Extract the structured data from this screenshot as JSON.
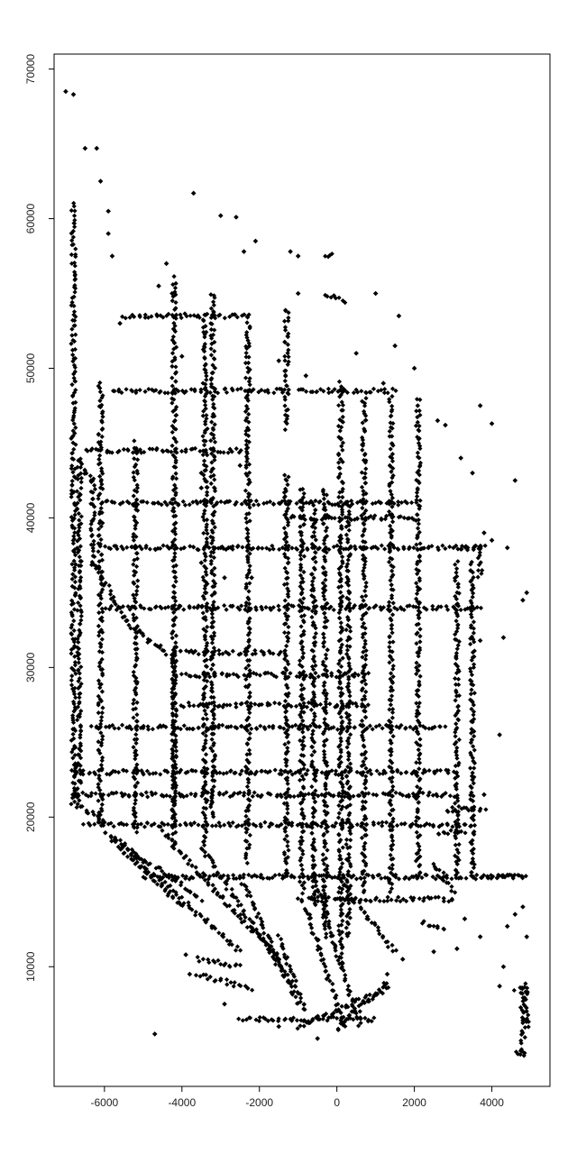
{
  "chart_data": {
    "type": "scatter",
    "title": "",
    "xlabel": "",
    "ylabel": "",
    "xlim": [
      -7300,
      5500
    ],
    "ylim": [
      2000,
      71000
    ],
    "grid": false,
    "legend": "none",
    "marker": "filled-diamond",
    "marker_color": "#000000",
    "x_ticks": [
      -6000,
      -4000,
      -2000,
      0,
      2000,
      4000
    ],
    "x_tick_labels": [
      "-6000",
      "-4000",
      "-2000",
      "0",
      "2000",
      "4000"
    ],
    "y_ticks": [
      10000,
      20000,
      30000,
      40000,
      50000,
      60000,
      70000
    ],
    "y_tick_labels": [
      "10000",
      "20000",
      "30000",
      "40000",
      "50000",
      "60000",
      "70000"
    ],
    "dense_traces": [
      {
        "x": [
          -6800,
          -6800
        ],
        "y": [
          21000,
          61000
        ]
      },
      {
        "x": [
          -6650,
          -6650
        ],
        "y": [
          21000,
          44000
        ]
      },
      {
        "x": [
          -6600,
          -6300
        ],
        "y": [
          43500,
          42500
        ]
      },
      {
        "x": [
          -6300,
          -6300
        ],
        "y": [
          42500,
          37000
        ]
      },
      {
        "x": [
          -6300,
          -5400
        ],
        "y": [
          37000,
          33000
        ]
      },
      {
        "x": [
          -5400,
          -4200
        ],
        "y": [
          33000,
          30500
        ]
      },
      {
        "x": [
          -6100,
          -6100
        ],
        "y": [
          19500,
          49000
        ]
      },
      {
        "x": [
          -5200,
          -5200
        ],
        "y": [
          19000,
          45000
        ]
      },
      {
        "x": [
          -4200,
          -4200
        ],
        "y": [
          18000,
          56000
        ]
      },
      {
        "x": [
          -3200,
          -3200
        ],
        "y": [
          20000,
          55000
        ]
      },
      {
        "x": [
          -3400,
          -3400
        ],
        "y": [
          18000,
          53500
        ]
      },
      {
        "x": [
          -2300,
          -2300
        ],
        "y": [
          17000,
          53500
        ]
      },
      {
        "x": [
          -1300,
          -1300
        ],
        "y": [
          16000,
          43000
        ]
      },
      {
        "x": [
          -1300,
          -1300
        ],
        "y": [
          46000,
          54000
        ]
      },
      {
        "x": [
          -900,
          -900
        ],
        "y": [
          15000,
          42000
        ]
      },
      {
        "x": [
          -600,
          -600
        ],
        "y": [
          14000,
          41000
        ]
      },
      {
        "x": [
          -300,
          -300
        ],
        "y": [
          12000,
          42000
        ]
      },
      {
        "x": [
          100,
          100
        ],
        "y": [
          10000,
          49000
        ]
      },
      {
        "x": [
          300,
          300
        ],
        "y": [
          12000,
          41000
        ]
      },
      {
        "x": [
          700,
          700
        ],
        "y": [
          15000,
          48000
        ]
      },
      {
        "x": [
          1400,
          1400
        ],
        "y": [
          15000,
          48000
        ]
      },
      {
        "x": [
          2100,
          2100
        ],
        "y": [
          16000,
          48000
        ]
      },
      {
        "x": [
          3100,
          3100
        ],
        "y": [
          16000,
          37000
        ]
      },
      {
        "x": [
          3500,
          3500
        ],
        "y": [
          16000,
          37000
        ]
      },
      {
        "x": [
          -6000,
          3700
        ],
        "y": [
          38000,
          38000
        ]
      },
      {
        "x": [
          -6000,
          3700
        ],
        "y": [
          34000,
          34000
        ]
      },
      {
        "x": [
          -6300,
          2800
        ],
        "y": [
          26000,
          26000
        ]
      },
      {
        "x": [
          -6800,
          3000
        ],
        "y": [
          21500,
          21500
        ]
      },
      {
        "x": [
          -6500,
          3500
        ],
        "y": [
          19500,
          19500
        ]
      },
      {
        "x": [
          -6800,
          3000
        ],
        "y": [
          23000,
          23000
        ]
      },
      {
        "x": [
          -5000,
          4900
        ],
        "y": [
          16000,
          16000
        ]
      },
      {
        "x": [
          -1000,
          3000
        ],
        "y": [
          14500,
          14500
        ]
      },
      {
        "x": [
          -1300,
          2000
        ],
        "y": [
          41000,
          41000
        ]
      },
      {
        "x": [
          -1300,
          2000
        ],
        "y": [
          40000,
          40000
        ]
      },
      {
        "x": [
          -6000,
          -1300
        ],
        "y": [
          41000,
          41000
        ]
      },
      {
        "x": [
          -6500,
          -2300
        ],
        "y": [
          44500,
          44500
        ]
      },
      {
        "x": [
          -5800,
          -1300
        ],
        "y": [
          48500,
          48500
        ]
      },
      {
        "x": [
          -1000,
          1500
        ],
        "y": [
          48500,
          48500
        ]
      },
      {
        "x": [
          -5500,
          -2300
        ],
        "y": [
          53500,
          53500
        ]
      },
      {
        "x": [
          -4200,
          -1400
        ],
        "y": [
          31000,
          31000
        ]
      },
      {
        "x": [
          -4200,
          -4200
        ],
        "y": [
          19500,
          31000
        ]
      },
      {
        "x": [
          -4000,
          800
        ],
        "y": [
          27500,
          27500
        ]
      },
      {
        "x": [
          -4000,
          800
        ],
        "y": [
          29500,
          29500
        ]
      },
      {
        "x": [
          -6800,
          -6000
        ],
        "y": [
          21000,
          19700
        ]
      },
      {
        "x": [
          -6000,
          -3500
        ],
        "y": [
          19000,
          14500
        ]
      },
      {
        "x": [
          -5800,
          -4000
        ],
        "y": [
          18500,
          14000
        ]
      },
      {
        "x": [
          -5500,
          -2500
        ],
        "y": [
          18000,
          11000
        ]
      },
      {
        "x": [
          -4500,
          -1500
        ],
        "y": [
          19000,
          10500
        ]
      },
      {
        "x": [
          -3500,
          -1200
        ],
        "y": [
          18000,
          9000
        ]
      },
      {
        "x": [
          -2500,
          -1000
        ],
        "y": [
          16000,
          7500
        ]
      },
      {
        "x": [
          -1500,
          -800
        ],
        "y": [
          12000,
          7000
        ]
      },
      {
        "x": [
          -800,
          200
        ],
        "y": [
          14000,
          6000
        ]
      },
      {
        "x": [
          -600,
          600
        ],
        "y": [
          16000,
          6000
        ]
      },
      {
        "x": [
          0,
          1500
        ],
        "y": [
          16000,
          11000
        ]
      },
      {
        "x": [
          -2500,
          1000
        ],
        "y": [
          6500,
          6500
        ]
      },
      {
        "x": [
          -1000,
          1300
        ],
        "y": [
          6000,
          8500
        ]
      },
      {
        "x": [
          0,
          1300
        ],
        "y": [
          5800,
          9000
        ]
      },
      {
        "x": [
          -3600,
          -2500
        ],
        "y": [
          10500,
          10000
        ]
      },
      {
        "x": [
          -3600,
          -2200
        ],
        "y": [
          9500,
          8500
        ]
      },
      {
        "x": [
          2500,
          3000
        ],
        "y": [
          17000,
          15000
        ]
      },
      {
        "x": [
          2600,
          3300
        ],
        "y": [
          19000,
          19000
        ]
      },
      {
        "x": [
          2800,
          3800
        ],
        "y": [
          20500,
          20500
        ]
      },
      {
        "x": [
          3800,
          4800
        ],
        "y": [
          16000,
          16000
        ]
      },
      {
        "x": [
          2200,
          2800
        ],
        "y": [
          13000,
          12500
        ]
      },
      {
        "x": [
          4600,
          4900
        ],
        "y": [
          8500,
          8500
        ]
      },
      {
        "x": [
          4800,
          4800
        ],
        "y": [
          8500,
          4200
        ]
      },
      {
        "x": [
          4600,
          4900
        ],
        "y": [
          4200,
          4200
        ]
      },
      {
        "x": [
          4900,
          4900
        ],
        "y": [
          8800,
          6000
        ]
      },
      {
        "x": [
          -300,
          200
        ],
        "y": [
          55000,
          54500
        ]
      },
      {
        "x": [
          -300,
          -100
        ],
        "y": [
          57500,
          57500
        ]
      },
      {
        "x": [
          3200,
          3800
        ],
        "y": [
          38000,
          38000
        ]
      },
      {
        "x": [
          3700,
          3700
        ],
        "y": [
          38000,
          36000
        ]
      }
    ],
    "scattered_points": [
      {
        "x": -7000,
        "y": 68500
      },
      {
        "x": -6800,
        "y": 68300
      },
      {
        "x": -6500,
        "y": 64700
      },
      {
        "x": -6200,
        "y": 64700
      },
      {
        "x": -6100,
        "y": 62500
      },
      {
        "x": -5900,
        "y": 60500
      },
      {
        "x": -5900,
        "y": 59000
      },
      {
        "x": -3700,
        "y": 61700
      },
      {
        "x": -3000,
        "y": 60200
      },
      {
        "x": -2600,
        "y": 60100
      },
      {
        "x": -2100,
        "y": 58500
      },
      {
        "x": -2400,
        "y": 57800
      },
      {
        "x": -1000,
        "y": 57500
      },
      {
        "x": -1200,
        "y": 57800
      },
      {
        "x": -1000,
        "y": 55000
      },
      {
        "x": -4600,
        "y": 55500
      },
      {
        "x": -4400,
        "y": 57000
      },
      {
        "x": -5800,
        "y": 57500
      },
      {
        "x": -5600,
        "y": 53000
      },
      {
        "x": 1600,
        "y": 53500
      },
      {
        "x": 1200,
        "y": 49000
      },
      {
        "x": 2800,
        "y": 46200
      },
      {
        "x": 2600,
        "y": 46500
      },
      {
        "x": 3700,
        "y": 31800
      },
      {
        "x": 4300,
        "y": 32000
      },
      {
        "x": 4800,
        "y": 34500
      },
      {
        "x": 4900,
        "y": 35000
      },
      {
        "x": 4400,
        "y": 38000
      },
      {
        "x": 4000,
        "y": 38500
      },
      {
        "x": 4600,
        "y": 42500
      },
      {
        "x": 3800,
        "y": 39000
      },
      {
        "x": 3500,
        "y": 35500
      },
      {
        "x": 4800,
        "y": 14000
      },
      {
        "x": 4600,
        "y": 13500
      },
      {
        "x": 4300,
        "y": 10000
      },
      {
        "x": 4200,
        "y": 8700
      },
      {
        "x": 4900,
        "y": 12000
      },
      {
        "x": -4700,
        "y": 5500
      },
      {
        "x": -1500,
        "y": 6000
      },
      {
        "x": -500,
        "y": 5200
      },
      {
        "x": -3000,
        "y": 38000
      },
      {
        "x": -2800,
        "y": 38000
      },
      {
        "x": -3500,
        "y": 37000
      },
      {
        "x": -2900,
        "y": 36000
      },
      {
        "x": -2200,
        "y": 36000
      },
      {
        "x": -3400,
        "y": 35000
      },
      {
        "x": -3600,
        "y": 34000
      },
      {
        "x": -3500,
        "y": 42000
      },
      {
        "x": -3500,
        "y": 43000
      },
      {
        "x": -2500,
        "y": 43500
      },
      {
        "x": -4000,
        "y": 50800
      },
      {
        "x": -1500,
        "y": 50500
      },
      {
        "x": -800,
        "y": 49500
      },
      {
        "x": 1000,
        "y": 55000
      },
      {
        "x": 500,
        "y": 51000
      },
      {
        "x": 1500,
        "y": 51500
      },
      {
        "x": 2000,
        "y": 50000
      },
      {
        "x": 3500,
        "y": 43000
      },
      {
        "x": 3200,
        "y": 44000
      },
      {
        "x": 3700,
        "y": 47500
      },
      {
        "x": 4000,
        "y": 46300
      },
      {
        "x": 4200,
        "y": 25500
      },
      {
        "x": 3500,
        "y": 22500
      },
      {
        "x": 3800,
        "y": 21500
      },
      {
        "x": 2500,
        "y": 11000
      },
      {
        "x": 1700,
        "y": 10500
      },
      {
        "x": 3300,
        "y": 13200
      },
      {
        "x": 3700,
        "y": 12000
      },
      {
        "x": 3100,
        "y": 11200
      },
      {
        "x": 4400,
        "y": 12700
      },
      {
        "x": -3900,
        "y": 10800
      },
      {
        "x": -3800,
        "y": 9500
      },
      {
        "x": -2900,
        "y": 7500
      },
      {
        "x": 800,
        "y": 7700
      },
      {
        "x": 1300,
        "y": 9500
      }
    ]
  }
}
